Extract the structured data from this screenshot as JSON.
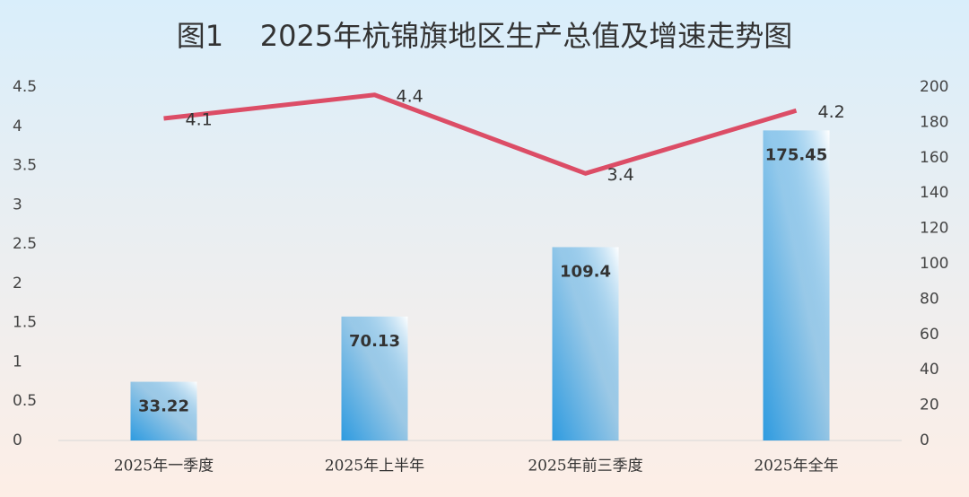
{
  "chart_data": {
    "type": "bar-line",
    "title": "图1    2025年杭锦旗地区生产总值及增速走势图",
    "categories": [
      "2025年一季度",
      "2025年上半年",
      "2025年前三季度",
      "2025年全年"
    ],
    "series": [
      {
        "type": "bar",
        "axis": "y2",
        "color": "#2e9be0",
        "values": [
          33.22,
          70.13,
          109.4,
          175.45
        ]
      },
      {
        "type": "line",
        "axis": "y",
        "color": "#dc4d66",
        "values": [
          4.1,
          4.4,
          3.4,
          4.2
        ]
      }
    ],
    "ylim": [
      0,
      4.5
    ],
    "yticks": [
      0,
      0.5,
      1,
      1.5,
      2,
      2.5,
      3,
      3.5,
      4,
      4.5
    ],
    "y2lim": [
      0,
      200
    ],
    "y2ticks": [
      0,
      20,
      40,
      60,
      80,
      100,
      120,
      140,
      160,
      180,
      200
    ],
    "grid": false
  }
}
